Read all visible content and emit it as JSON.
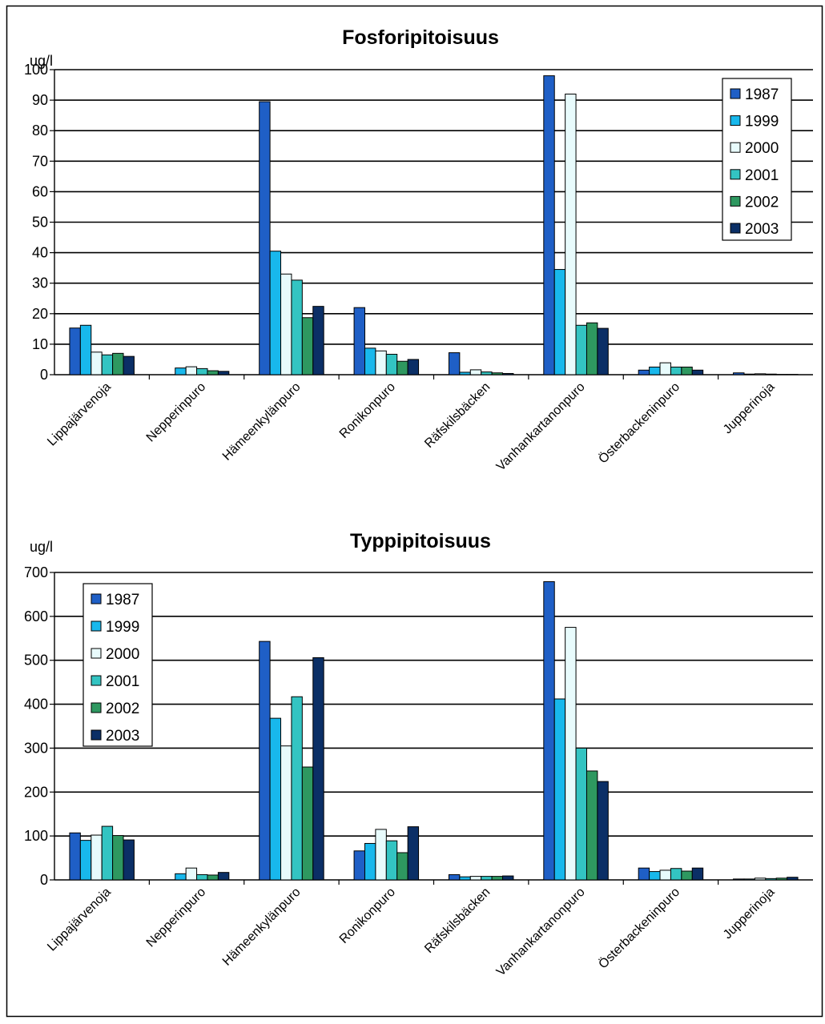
{
  "colors": {
    "1987": "#1f5fc6",
    "1999": "#18b8ec",
    "2000": "#e8fbfc",
    "2001": "#33c4c2",
    "2002": "#2e9860",
    "2003": "#0b2f66"
  },
  "chart_data": [
    {
      "type": "bar",
      "title": "Fosforipitoisuus",
      "ylabel": "ug/l",
      "ylim": [
        0,
        100
      ],
      "yticks": [
        0,
        10,
        20,
        30,
        40,
        50,
        60,
        70,
        80,
        90,
        100
      ],
      "grid": true,
      "legend_position": "top-right",
      "categories": [
        "Lippajärvenoja",
        "Nepperinpuro",
        "Hämeenkylänpuro",
        "Ronikonpuro",
        "Räfskilsbäcken",
        "Vanhankartanonpuro",
        "Österbackeninpuro",
        "Jupperinoja"
      ],
      "series": [
        {
          "name": "1987",
          "values": [
            15.3,
            0,
            89.5,
            22,
            7.2,
            98,
            1.5,
            0.6
          ]
        },
        {
          "name": "1999",
          "values": [
            16.2,
            2.2,
            40.5,
            8.7,
            0.8,
            34.5,
            2.5,
            0.2
          ]
        },
        {
          "name": "2000",
          "values": [
            7.4,
            2.6,
            33,
            7.8,
            1.6,
            92,
            3.9,
            0.3
          ]
        },
        {
          "name": "2001",
          "values": [
            6.5,
            2.0,
            31,
            6.7,
            0.9,
            16.2,
            2.5,
            0.2
          ]
        },
        {
          "name": "2002",
          "values": [
            7.0,
            1.3,
            18.7,
            4.4,
            0.6,
            17,
            2.5,
            0.1
          ]
        },
        {
          "name": "2003",
          "values": [
            6.0,
            1.1,
            22.4,
            5.0,
            0.4,
            15.2,
            1.5,
            0.1
          ]
        }
      ]
    },
    {
      "type": "bar",
      "title": "Typpipitoisuus",
      "ylabel": "ug/l",
      "ylim": [
        0,
        700
      ],
      "yticks": [
        0,
        100,
        200,
        300,
        400,
        500,
        600,
        700
      ],
      "grid": true,
      "legend_position": "top-left",
      "categories": [
        "Lippajärvenoja",
        "Nepperinpuro",
        "Hämeenkylänpuro",
        "Ronikonpuro",
        "Räfskilsbäcken",
        "Vanhankartanonpuro",
        "Österbackeninpuro",
        "Jupperinoja"
      ],
      "series": [
        {
          "name": "1987",
          "values": [
            107,
            0,
            543,
            66,
            12,
            679,
            27,
            2
          ]
        },
        {
          "name": "1999",
          "values": [
            90,
            14,
            368,
            83,
            7,
            412,
            19,
            2
          ]
        },
        {
          "name": "2000",
          "values": [
            102,
            27,
            305,
            115,
            8,
            575,
            22,
            4
          ]
        },
        {
          "name": "2001",
          "values": [
            122,
            12,
            417,
            89,
            8,
            300,
            26,
            3
          ]
        },
        {
          "name": "2002",
          "values": [
            101,
            11,
            257,
            62,
            8,
            248,
            20,
            4
          ]
        },
        {
          "name": "2003",
          "values": [
            91,
            17,
            506,
            121,
            9,
            224,
            27,
            6
          ]
        }
      ]
    }
  ]
}
